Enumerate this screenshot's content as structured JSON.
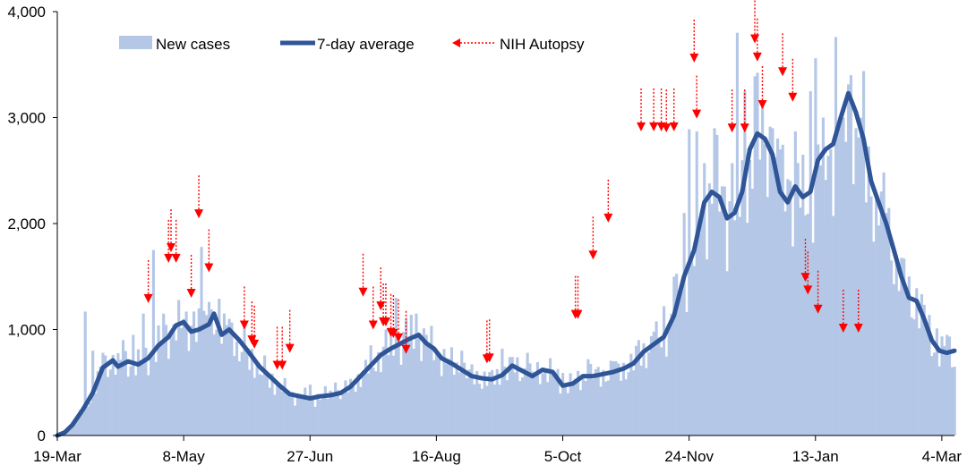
{
  "chart_data": {
    "type": "bar",
    "title": "",
    "xlabel": "",
    "ylabel": "",
    "ylim": [
      0,
      4000
    ],
    "y_ticks": [
      "0",
      "1,000",
      "2,000",
      "3,000",
      "4,000"
    ],
    "y_tick_values": [
      0,
      1000,
      2000,
      3000,
      4000
    ],
    "x_ticks": [
      "19-Mar",
      "8-May",
      "27-Jun",
      "16-Aug",
      "5-Oct",
      "24-Nov",
      "13-Jan",
      "4-Mar"
    ],
    "x_tick_days": [
      0,
      50,
      100,
      150,
      200,
      250,
      300,
      350
    ],
    "x_range_days": [
      0,
      355
    ],
    "legend": {
      "placement": "top",
      "items": [
        {
          "label": "New cases",
          "kind": "bar",
          "color": "#b4c7e7"
        },
        {
          "label": "7-day average",
          "kind": "line",
          "color": "#2f5597"
        },
        {
          "label": "NIH Autopsy",
          "kind": "arrow",
          "color": "#ff0000"
        }
      ]
    },
    "colors": {
      "bars": "#b4c7e7",
      "line": "#2f5597",
      "arrows": "#ff0000",
      "axis": "#000000"
    },
    "series": [
      {
        "name": "7-day average",
        "type": "line",
        "points": [
          [
            0,
            0
          ],
          [
            3,
            30
          ],
          [
            6,
            100
          ],
          [
            10,
            240
          ],
          [
            14,
            400
          ],
          [
            18,
            640
          ],
          [
            22,
            710
          ],
          [
            24,
            650
          ],
          [
            28,
            700
          ],
          [
            32,
            670
          ],
          [
            36,
            730
          ],
          [
            40,
            850
          ],
          [
            44,
            930
          ],
          [
            47,
            1040
          ],
          [
            50,
            1070
          ],
          [
            53,
            980
          ],
          [
            56,
            1000
          ],
          [
            60,
            1050
          ],
          [
            62,
            1150
          ],
          [
            65,
            950
          ],
          [
            68,
            1000
          ],
          [
            72,
            900
          ],
          [
            76,
            780
          ],
          [
            80,
            650
          ],
          [
            84,
            560
          ],
          [
            88,
            470
          ],
          [
            92,
            390
          ],
          [
            96,
            370
          ],
          [
            100,
            350
          ],
          [
            104,
            370
          ],
          [
            108,
            380
          ],
          [
            112,
            400
          ],
          [
            116,
            460
          ],
          [
            120,
            560
          ],
          [
            124,
            660
          ],
          [
            128,
            760
          ],
          [
            132,
            820
          ],
          [
            136,
            870
          ],
          [
            140,
            920
          ],
          [
            143,
            950
          ],
          [
            146,
            870
          ],
          [
            149,
            820
          ],
          [
            152,
            730
          ],
          [
            156,
            680
          ],
          [
            160,
            620
          ],
          [
            164,
            560
          ],
          [
            168,
            540
          ],
          [
            172,
            530
          ],
          [
            176,
            570
          ],
          [
            180,
            660
          ],
          [
            184,
            610
          ],
          [
            188,
            560
          ],
          [
            192,
            620
          ],
          [
            196,
            600
          ],
          [
            200,
            470
          ],
          [
            204,
            490
          ],
          [
            208,
            560
          ],
          [
            212,
            560
          ],
          [
            216,
            580
          ],
          [
            220,
            600
          ],
          [
            224,
            630
          ],
          [
            228,
            680
          ],
          [
            232,
            790
          ],
          [
            236,
            860
          ],
          [
            240,
            930
          ],
          [
            244,
            1130
          ],
          [
            248,
            1500
          ],
          [
            252,
            1750
          ],
          [
            256,
            2200
          ],
          [
            259,
            2300
          ],
          [
            262,
            2250
          ],
          [
            265,
            2050
          ],
          [
            268,
            2100
          ],
          [
            271,
            2300
          ],
          [
            274,
            2700
          ],
          [
            277,
            2850
          ],
          [
            280,
            2800
          ],
          [
            283,
            2650
          ],
          [
            286,
            2300
          ],
          [
            289,
            2200
          ],
          [
            292,
            2350
          ],
          [
            295,
            2250
          ],
          [
            298,
            2300
          ],
          [
            301,
            2600
          ],
          [
            304,
            2700
          ],
          [
            307,
            2750
          ],
          [
            310,
            3000
          ],
          [
            313,
            3230
          ],
          [
            316,
            3050
          ],
          [
            319,
            2800
          ],
          [
            322,
            2400
          ],
          [
            325,
            2200
          ],
          [
            328,
            2000
          ],
          [
            331,
            1750
          ],
          [
            334,
            1500
          ],
          [
            337,
            1300
          ],
          [
            340,
            1270
          ],
          [
            343,
            1100
          ],
          [
            346,
            900
          ],
          [
            349,
            800
          ],
          [
            352,
            780
          ],
          [
            355,
            800
          ]
        ]
      },
      {
        "name": "New cases",
        "type": "bar",
        "spikes": [
          [
            11,
            1170
          ],
          [
            14,
            800
          ],
          [
            18,
            780
          ],
          [
            22,
            760
          ],
          [
            26,
            900
          ],
          [
            30,
            950
          ],
          [
            34,
            1150
          ],
          [
            38,
            1750
          ],
          [
            42,
            1150
          ],
          [
            46,
            1050
          ],
          [
            50,
            1100
          ],
          [
            54,
            1170
          ],
          [
            57,
            1780
          ],
          [
            60,
            1260
          ],
          [
            64,
            1290
          ],
          [
            68,
            1100
          ],
          [
            72,
            700
          ],
          [
            76,
            620
          ],
          [
            80,
            580
          ],
          [
            84,
            450
          ],
          [
            100,
            480
          ],
          [
            110,
            500
          ],
          [
            124,
            850
          ],
          [
            130,
            1000
          ],
          [
            134,
            1300
          ],
          [
            138,
            1100
          ],
          [
            142,
            1150
          ],
          [
            146,
            950
          ],
          [
            160,
            800
          ],
          [
            176,
            820
          ],
          [
            186,
            780
          ],
          [
            200,
            590
          ],
          [
            210,
            720
          ],
          [
            220,
            700
          ],
          [
            230,
            900
          ],
          [
            236,
            980
          ],
          [
            240,
            1220
          ],
          [
            244,
            1500
          ],
          [
            248,
            2100
          ],
          [
            250,
            2890
          ],
          [
            253,
            2870
          ],
          [
            256,
            2570
          ],
          [
            260,
            2900
          ],
          [
            264,
            2350
          ],
          [
            267,
            2570
          ],
          [
            269,
            3800
          ],
          [
            272,
            3250
          ],
          [
            274,
            2600
          ],
          [
            276,
            3390
          ],
          [
            279,
            3100
          ],
          [
            283,
            2900
          ],
          [
            286,
            2700
          ],
          [
            289,
            2420
          ],
          [
            292,
            2870
          ],
          [
            295,
            2650
          ],
          [
            298,
            3250
          ],
          [
            300,
            3560
          ],
          [
            303,
            3000
          ],
          [
            306,
            2700
          ],
          [
            308,
            3760
          ],
          [
            311,
            3000
          ],
          [
            314,
            3400
          ],
          [
            316,
            2900
          ],
          [
            320,
            2200
          ],
          [
            324,
            2230
          ],
          [
            328,
            2100
          ],
          [
            332,
            1700
          ],
          [
            336,
            1350
          ],
          [
            340,
            1390
          ],
          [
            344,
            1020
          ],
          [
            348,
            1010
          ],
          [
            352,
            950
          ],
          [
            355,
            650
          ]
        ]
      },
      {
        "name": "NIH Autopsy",
        "type": "markers",
        "points": [
          [
            36,
            1250
          ],
          [
            44,
            1630
          ],
          [
            45,
            1730
          ],
          [
            47,
            1630
          ],
          [
            53,
            1300
          ],
          [
            56,
            2050
          ],
          [
            60,
            1540
          ],
          [
            74,
            1000
          ],
          [
            77,
            860
          ],
          [
            78,
            820
          ],
          [
            87,
            620
          ],
          [
            89,
            620
          ],
          [
            92,
            780
          ],
          [
            121,
            1310
          ],
          [
            125,
            1000
          ],
          [
            128,
            1180
          ],
          [
            129,
            1030
          ],
          [
            130,
            1030
          ],
          [
            132,
            930
          ],
          [
            133,
            920
          ],
          [
            135,
            880
          ],
          [
            138,
            770
          ],
          [
            170,
            680
          ],
          [
            171,
            690
          ],
          [
            205,
            1100
          ],
          [
            206,
            1100
          ],
          [
            212,
            1660
          ],
          [
            218,
            2010
          ],
          [
            231,
            2870
          ],
          [
            236,
            2870
          ],
          [
            239,
            2870
          ],
          [
            241,
            2860
          ],
          [
            244,
            2870
          ],
          [
            252,
            3520
          ],
          [
            253,
            2990
          ],
          [
            267,
            2860
          ],
          [
            272,
            2860
          ],
          [
            276,
            3700
          ],
          [
            277,
            3530
          ],
          [
            279,
            3080
          ],
          [
            287,
            3390
          ],
          [
            291,
            3150
          ],
          [
            296,
            1450
          ],
          [
            297,
            1330
          ],
          [
            301,
            1150
          ],
          [
            311,
            970
          ],
          [
            317,
            970
          ]
        ]
      }
    ]
  }
}
